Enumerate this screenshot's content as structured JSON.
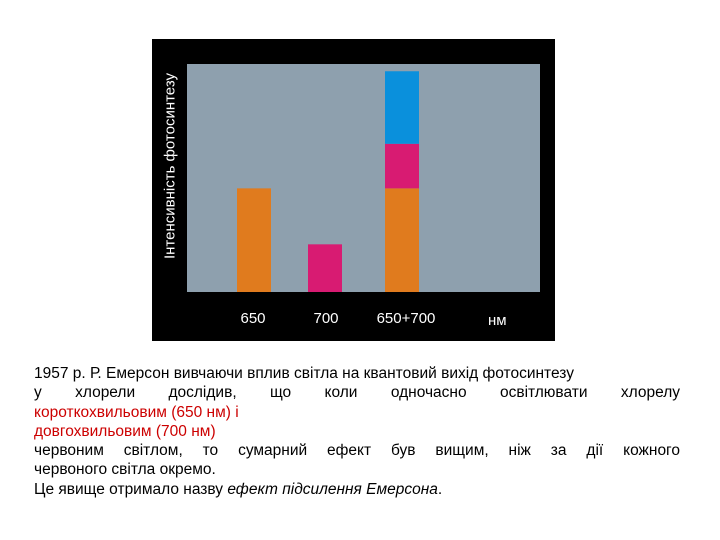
{
  "chart_data": {
    "type": "bar",
    "categories": [
      "650",
      "700",
      "650+700"
    ],
    "series": [
      {
        "color": "#e07b1e",
        "values": [
          100,
          0,
          100
        ]
      },
      {
        "color": "#d81b72",
        "values": [
          0,
          46,
          43
        ]
      },
      {
        "color": "#0a90dc",
        "values": [
          0,
          0,
          70
        ]
      }
    ],
    "xlabel": "нм",
    "ylabel": "Інтенсивність фотосинтезу",
    "ylim": [
      0,
      220
    ],
    "grid": false,
    "stacked": true,
    "plot_background": "#8ea0ae",
    "frame_background": "#000000"
  },
  "text": {
    "line1": "1957 р. Р. Емерсон вивчаючи вплив світла на квантовий вихід фотосинтезу",
    "line2": "у хлорели дослідив, що коли одночасно освітлювати хлорелу",
    "line3_red": "короткохвильовим (650 нм) і",
    "line4_red": "довгохвильовим (700 нм)",
    "line5": "червоним світлом, то сумарний ефект був вищим, ніж за дії кожного",
    "line6": "червоного світла окремо.",
    "line7_prefix": "Це явище отримало назву ",
    "line7_italic": "ефект підсилення Емерсона",
    "line7_suffix": "."
  },
  "colors": {
    "highlight_text": "#cc0000"
  }
}
